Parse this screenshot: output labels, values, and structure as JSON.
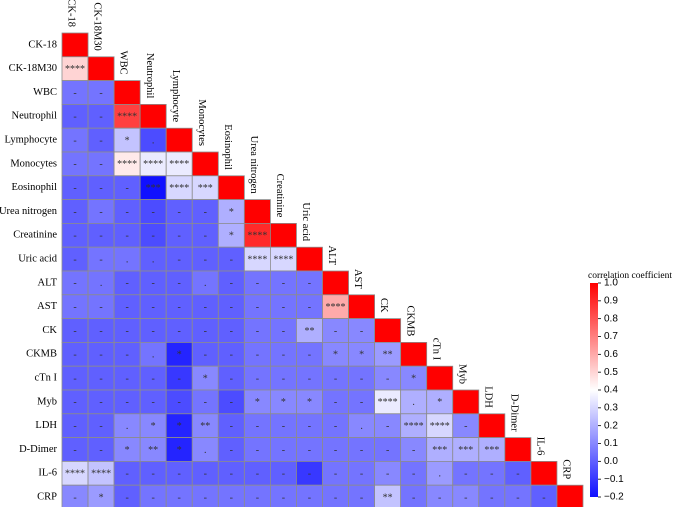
{
  "chart_data": {
    "type": "heatmap",
    "variables": [
      "CK-18",
      "CK-18M30",
      "WBC",
      "Neutrophil",
      "Lymphocyte",
      "Monocytes",
      "Eosinophil",
      "Urea nitrogen",
      "Creatinine",
      "Uric acid",
      "ALT",
      "AST",
      "CK",
      "CKMB",
      "cTn I",
      "Myb",
      "LDH",
      "D-Dimer",
      "IL-6",
      "CRP"
    ],
    "z": [
      [
        1
      ],
      [
        0.5,
        1
      ],
      [
        0.05,
        0.05,
        1
      ],
      [
        0.0,
        0.0,
        0.85,
        1
      ],
      [
        0.05,
        0.0,
        0.25,
        -0.05,
        1
      ],
      [
        0.05,
        0.05,
        0.45,
        0.35,
        0.35,
        1
      ],
      [
        0.0,
        0.0,
        0.0,
        -0.2,
        0.3,
        0.3,
        1
      ],
      [
        0.0,
        0.05,
        0.0,
        -0.05,
        0.0,
        0.0,
        0.2,
        1
      ],
      [
        0.0,
        0.0,
        0.0,
        -0.05,
        0.0,
        0.0,
        0.2,
        0.9,
        1
      ],
      [
        0.0,
        0.05,
        0.05,
        0.0,
        0.0,
        0.0,
        0.0,
        0.3,
        0.3,
        1
      ],
      [
        0.05,
        0.05,
        0.0,
        0.0,
        0.0,
        0.05,
        0.0,
        0.05,
        0.05,
        0.05,
        1
      ],
      [
        0.05,
        0.05,
        0.0,
        0.0,
        0.0,
        0.0,
        0.0,
        0.05,
        0.05,
        0.05,
        0.6,
        1
      ],
      [
        0.0,
        0.0,
        0.0,
        0.0,
        0.0,
        0.0,
        0.0,
        0.05,
        0.05,
        0.2,
        0.1,
        0.1,
        1
      ],
      [
        0.0,
        0.0,
        0.0,
        0.05,
        -0.15,
        0.0,
        0.0,
        0.05,
        0.05,
        0.05,
        0.1,
        0.1,
        0.15,
        1
      ],
      [
        0.0,
        0.0,
        0.0,
        0.0,
        -0.1,
        0.1,
        0.0,
        0.05,
        0.05,
        0.05,
        0.05,
        0.05,
        0.1,
        0.1,
        1
      ],
      [
        0.0,
        0.0,
        0.0,
        0.0,
        -0.05,
        0.05,
        -0.05,
        0.1,
        0.1,
        0.1,
        0.05,
        0.05,
        0.35,
        0.2,
        0.2,
        1
      ],
      [
        0.0,
        0.0,
        0.1,
        0.1,
        -0.15,
        0.1,
        0.0,
        0.05,
        0.05,
        0.05,
        0.05,
        0.1,
        0.1,
        0.2,
        0.3,
        0.1,
        1
      ],
      [
        0.0,
        0.0,
        0.1,
        0.1,
        -0.15,
        0.1,
        0.0,
        0.05,
        0.05,
        0.05,
        0.05,
        0.05,
        0.05,
        0.1,
        0.2,
        0.2,
        0.2,
        1
      ],
      [
        0.3,
        0.25,
        0.0,
        0.0,
        0.0,
        0.0,
        0.0,
        0.0,
        0.0,
        -0.1,
        0.05,
        0.05,
        0.1,
        0.05,
        0.15,
        0.05,
        0.05,
        0.0,
        1
      ],
      [
        0.1,
        0.15,
        0.0,
        0.05,
        0.05,
        0.05,
        0.05,
        0.05,
        0.05,
        0.05,
        0.05,
        0.05,
        0.25,
        0.05,
        0.1,
        0.1,
        0.05,
        0.05,
        0.0,
        1
      ]
    ],
    "labels": [
      [],
      [
        "****"
      ],
      [
        "-",
        "-"
      ],
      [
        "-",
        "-",
        "****"
      ],
      [
        "-",
        "-",
        "*",
        "."
      ],
      [
        "-",
        "-",
        "****",
        "****",
        "****"
      ],
      [
        "-",
        "-",
        "-",
        "***",
        "****",
        "***"
      ],
      [
        "-",
        "-",
        "-",
        "-",
        "-",
        "-",
        "*"
      ],
      [
        "-",
        "-",
        "-",
        "-",
        "-",
        "-",
        "*",
        "****"
      ],
      [
        "-",
        "-",
        ".",
        ".",
        "-",
        "-",
        "-",
        "****",
        "****"
      ],
      [
        "-",
        ".",
        "-",
        "-",
        "-",
        ".",
        "-",
        "-",
        "-",
        "-"
      ],
      [
        "-",
        "-",
        "-",
        "-",
        "-",
        "-",
        "-",
        "-",
        "-",
        "-",
        "****"
      ],
      [
        "-",
        "-",
        "-",
        "-",
        "-",
        "-",
        "-",
        "-",
        "-",
        "**",
        "-",
        "-"
      ],
      [
        "-",
        "-",
        "-",
        ".",
        "*",
        "-",
        "-",
        "-",
        "-",
        "-",
        "*",
        "*",
        "**"
      ],
      [
        "-",
        "-",
        "-",
        "-",
        "-",
        "*",
        "-",
        "-",
        "-",
        "-",
        "-",
        "-",
        "-",
        "*"
      ],
      [
        "-",
        "-",
        "-",
        "-",
        "-",
        "-",
        "-",
        "*",
        "*",
        "*",
        "-",
        "-",
        "****",
        ".",
        "*"
      ],
      [
        "-",
        "-",
        ".",
        "*",
        "*",
        "**",
        "-",
        "-",
        "-",
        "-",
        "-",
        ".",
        "-",
        "****",
        "****",
        "-"
      ],
      [
        "-",
        "-",
        "*",
        "**",
        "*",
        ".",
        "-",
        "-",
        "-",
        "-",
        "-",
        "-",
        "-",
        "-",
        "***",
        "***",
        "***"
      ],
      [
        "****",
        "****",
        "-",
        "-",
        "-",
        "-",
        "-",
        "-",
        "-",
        "-",
        "-",
        "-",
        "-",
        "-",
        ".",
        "-",
        "-",
        "-"
      ],
      [
        "-",
        "*",
        "-",
        "-",
        "-",
        "-",
        "-",
        "-",
        "-",
        "-",
        "-",
        "-",
        "**",
        "-",
        "-",
        "-",
        "-",
        "-",
        "-"
      ]
    ],
    "colorbar_title": "correlation coefficient",
    "zlim": [
      -0.2,
      1
    ],
    "colors": [
      "#1010ff",
      "#ffffff",
      "#ff0000"
    ],
    "zticks": [
      {
        "value": 1,
        "label": "1.0"
      },
      0.9,
      0.8,
      0.7,
      0.6,
      0.5,
      0.4,
      0.3,
      0.2,
      0.1,
      {
        "value": 0,
        "label": "0.0"
      },
      {
        "value": -0.1,
        "label": "−0.1"
      },
      {
        "value": -0.2,
        "label": "−0.2"
      }
    ]
  }
}
